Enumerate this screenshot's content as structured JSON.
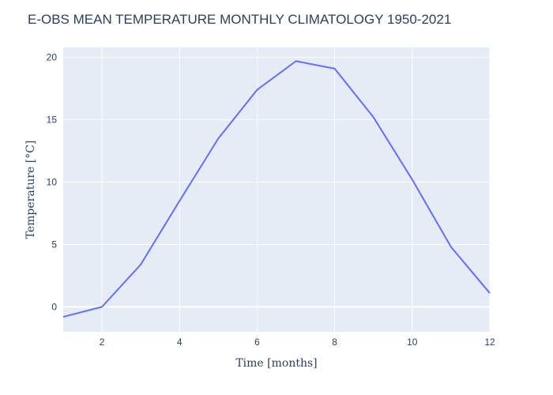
{
  "chart_data": {
    "type": "line",
    "title": "E-OBS MEAN TEMPERATURE MONTHLY CLIMATOLOGY 1950-2021",
    "xlabel": "Time [months]",
    "ylabel": "Temperature [°C]",
    "xlim": [
      1,
      12
    ],
    "ylim": [
      -2,
      20.8
    ],
    "xticks": [
      2,
      4,
      6,
      8,
      10,
      12
    ],
    "yticks": [
      0,
      5,
      10,
      15,
      20
    ],
    "grid": true,
    "legend": "none",
    "line_color": "#636efa",
    "plot_bg": "#e5ecf6",
    "series": [
      {
        "x": [
          1,
          2,
          3,
          4,
          5,
          6,
          7,
          8,
          9,
          10,
          11,
          12
        ],
        "values": [
          -0.8,
          0.0,
          3.4,
          8.5,
          13.5,
          17.4,
          19.7,
          19.1,
          15.2,
          10.2,
          4.8,
          1.1
        ]
      }
    ]
  }
}
